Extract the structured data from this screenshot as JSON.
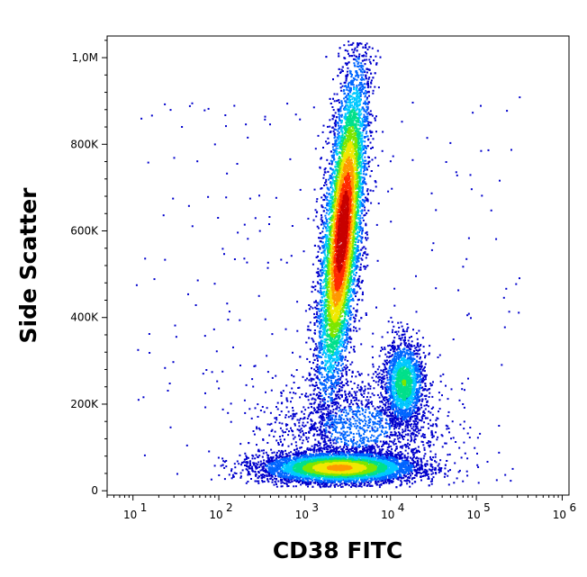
{
  "chart_data": {
    "type": "scatter",
    "subtype": "flow-cytometry-density-dot-plot",
    "title": "",
    "xlabel": "CD38 FITC",
    "ylabel": "Side Scatter",
    "x_scale": "log",
    "xlim": [
      5,
      1200000
    ],
    "ylim": [
      -10000,
      1050000
    ],
    "x_ticks": [
      {
        "value": 10,
        "base": "10",
        "exp": "1"
      },
      {
        "value": 100,
        "base": "10",
        "exp": "2"
      },
      {
        "value": 1000,
        "base": "10",
        "exp": "3"
      },
      {
        "value": 10000,
        "base": "10",
        "exp": "4"
      },
      {
        "value": 100000,
        "base": "10",
        "exp": "5"
      },
      {
        "value": 1000000,
        "base": "10",
        "exp": "6"
      }
    ],
    "y_ticks": [
      {
        "value": 0,
        "label": "0"
      },
      {
        "value": 200000,
        "label": "200K"
      },
      {
        "value": 400000,
        "label": "400K"
      },
      {
        "value": 600000,
        "label": "600K"
      },
      {
        "value": 800000,
        "label": "800K"
      },
      {
        "value": 1000000,
        "label": "1,0M"
      }
    ],
    "color_scale": [
      "#0000cc",
      "#0066ff",
      "#00c8ff",
      "#00e08a",
      "#7ce600",
      "#f0e800",
      "#ff9900",
      "#ff2a00",
      "#c80000"
    ],
    "populations": [
      {
        "label": "",
        "center_x": 2700,
        "center_y": 600000,
        "spread_log_x": 0.11,
        "spread_y": 120000,
        "count": 9000,
        "peak_density": 1.0
      },
      {
        "label": "",
        "center_x": 14000,
        "center_y": 250000,
        "spread_log_x": 0.12,
        "spread_y": 50000,
        "count": 1800,
        "peak_density": 0.45
      },
      {
        "label": "",
        "center_x": 2500,
        "center_y": 55000,
        "spread_log_x": 0.45,
        "spread_y": 18000,
        "count": 6000,
        "peak_density": 0.7
      },
      {
        "label": "",
        "center_x": 4000,
        "center_y": 150000,
        "spread_log_x": 0.5,
        "spread_y": 60000,
        "count": 1500,
        "peak_density": 0.15
      }
    ],
    "grid": false,
    "legend": "none"
  }
}
